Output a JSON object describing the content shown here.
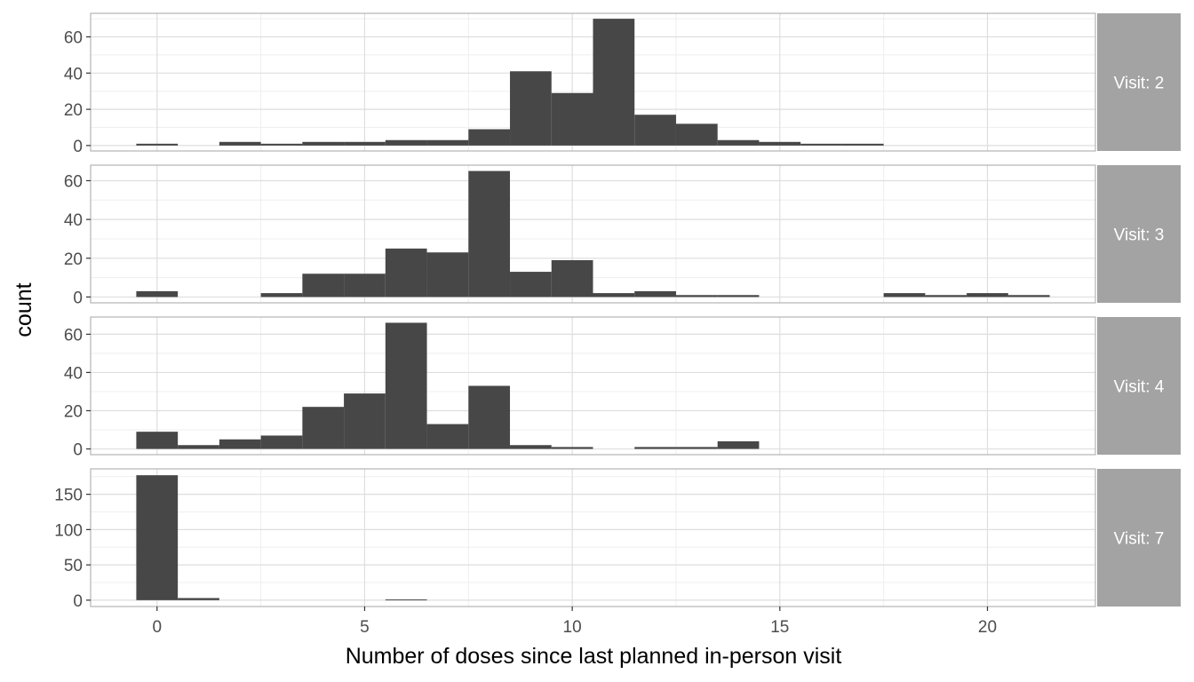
{
  "chart_data": {
    "type": "bar",
    "facet_by": "Visit",
    "xlabel": "Number of doses since last planned in-person visit",
    "ylabel": "count",
    "xlim": [
      -1.6,
      22.6
    ],
    "x_ticks": [
      0,
      5,
      10,
      15,
      20
    ],
    "x_tick_labels": [
      "0",
      "5",
      "10",
      "15",
      "20"
    ],
    "bin_width": 1,
    "grid": true,
    "colors": {
      "bar": "#474747",
      "strip": "#a3a3a3",
      "strip_text": "#ffffff",
      "panel_border": "#b3b3b3",
      "grid_major": "#dedede",
      "grid_minor": "#efefef"
    },
    "panels": [
      {
        "strip_label": "Visit: 2",
        "ylim": [
          -3,
          73
        ],
        "y_ticks": [
          0,
          20,
          40,
          60
        ],
        "y_tick_labels": [
          "0",
          "20",
          "40",
          "60"
        ],
        "bins": [
          {
            "x": 0,
            "count": 1
          },
          {
            "x": 2,
            "count": 2
          },
          {
            "x": 3,
            "count": 1
          },
          {
            "x": 4,
            "count": 2
          },
          {
            "x": 5,
            "count": 2
          },
          {
            "x": 6,
            "count": 3
          },
          {
            "x": 7,
            "count": 3
          },
          {
            "x": 8,
            "count": 9
          },
          {
            "x": 9,
            "count": 41
          },
          {
            "x": 10,
            "count": 29
          },
          {
            "x": 11,
            "count": 70
          },
          {
            "x": 12,
            "count": 17
          },
          {
            "x": 13,
            "count": 12
          },
          {
            "x": 14,
            "count": 3
          },
          {
            "x": 15,
            "count": 2
          },
          {
            "x": 16,
            "count": 1
          },
          {
            "x": 17,
            "count": 1
          }
        ]
      },
      {
        "strip_label": "Visit: 3",
        "ylim": [
          -3,
          68
        ],
        "y_ticks": [
          0,
          20,
          40,
          60
        ],
        "y_tick_labels": [
          "0",
          "20",
          "40",
          "60"
        ],
        "bins": [
          {
            "x": 0,
            "count": 3
          },
          {
            "x": 3,
            "count": 2
          },
          {
            "x": 4,
            "count": 12
          },
          {
            "x": 5,
            "count": 12
          },
          {
            "x": 6,
            "count": 25
          },
          {
            "x": 7,
            "count": 23
          },
          {
            "x": 8,
            "count": 65
          },
          {
            "x": 9,
            "count": 13
          },
          {
            "x": 10,
            "count": 19
          },
          {
            "x": 11,
            "count": 2
          },
          {
            "x": 12,
            "count": 3
          },
          {
            "x": 13,
            "count": 1
          },
          {
            "x": 14,
            "count": 1
          },
          {
            "x": 18,
            "count": 2
          },
          {
            "x": 19,
            "count": 1
          },
          {
            "x": 20,
            "count": 2
          },
          {
            "x": 21,
            "count": 1
          }
        ]
      },
      {
        "strip_label": "Visit: 4",
        "ylim": [
          -3,
          69
        ],
        "y_ticks": [
          0,
          20,
          40,
          60
        ],
        "y_tick_labels": [
          "0",
          "20",
          "40",
          "60"
        ],
        "bins": [
          {
            "x": 0,
            "count": 9
          },
          {
            "x": 1,
            "count": 2
          },
          {
            "x": 2,
            "count": 5
          },
          {
            "x": 3,
            "count": 7
          },
          {
            "x": 4,
            "count": 22
          },
          {
            "x": 5,
            "count": 29
          },
          {
            "x": 6,
            "count": 66
          },
          {
            "x": 7,
            "count": 13
          },
          {
            "x": 8,
            "count": 33
          },
          {
            "x": 9,
            "count": 2
          },
          {
            "x": 10,
            "count": 1
          },
          {
            "x": 12,
            "count": 1
          },
          {
            "x": 13,
            "count": 1
          },
          {
            "x": 14,
            "count": 4
          }
        ]
      },
      {
        "strip_label": "Visit: 7",
        "ylim": [
          -9,
          186
        ],
        "y_ticks": [
          0,
          50,
          100,
          150
        ],
        "y_tick_labels": [
          "0",
          "50",
          "100",
          "150"
        ],
        "bins": [
          {
            "x": 0,
            "count": 177
          },
          {
            "x": 1,
            "count": 3
          },
          {
            "x": 6,
            "count": 1
          }
        ]
      }
    ]
  }
}
